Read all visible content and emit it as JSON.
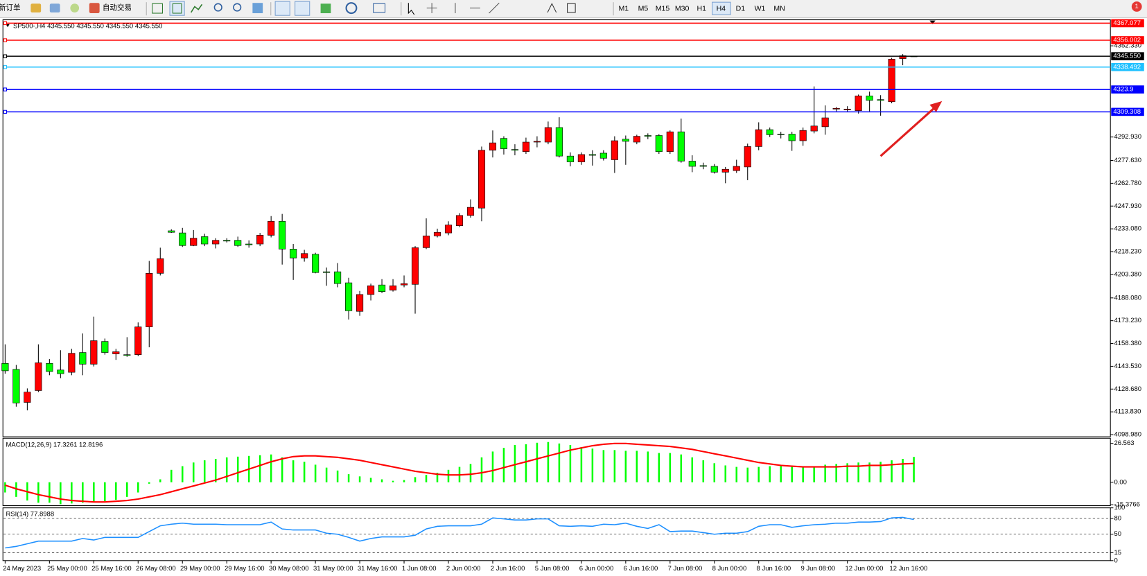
{
  "toolbar": {
    "new_order": "新订单",
    "auto_trade": "自动交易",
    "periods": [
      "M1",
      "M5",
      "M15",
      "M30",
      "H1",
      "H4",
      "D1",
      "W1",
      "MN"
    ],
    "notifications": 1
  },
  "chart_data": [
    {
      "type": "candlestick",
      "title": "SP500-,H4  4345.550 4345.550 4345.550 4345.550",
      "up_color": "#ff0000",
      "down_color": "#00ff00",
      "categories": [
        "24 May 2023",
        null,
        null,
        null,
        "25 May 00:00",
        null,
        null,
        null,
        "25 May 16:00",
        null,
        null,
        null,
        "26 May 08:00",
        null,
        null,
        null,
        "29 May 00:00",
        null,
        null,
        null,
        "29 May 16:00",
        null,
        null,
        null,
        "30 May 08:00",
        null,
        null,
        null,
        "31 May 00:00",
        null,
        null,
        null,
        "31 May 16:00",
        null,
        null,
        null,
        "1 Jun 08:00",
        null,
        null,
        null,
        "2 Jun 00:00",
        null,
        null,
        null,
        "2 Jun 16:00",
        null,
        null,
        null,
        "5 Jun 08:00",
        null,
        null,
        null,
        "6 Jun 00:00",
        null,
        null,
        null,
        "6 Jun 16:00",
        null,
        null,
        null,
        "7 Jun 08:00",
        null,
        null,
        null,
        "8 Jun 00:00",
        null,
        null,
        null,
        "8 Jun 16:00",
        null,
        null,
        null,
        "9 Jun 08:00",
        null,
        null,
        null,
        "12 Jun 00:00",
        null,
        null,
        null,
        "12 Jun 16:00",
        null,
        null
      ],
      "open": [
        4145.4,
        4141.5,
        4120.0,
        4127.7,
        4145.4,
        4141.1,
        4139.6,
        4152.5,
        4144.9,
        4159.7,
        4151.6,
        4151.1,
        4151.1,
        4169.2,
        4204.1,
        4231.8,
        4230.4,
        4222.2,
        4228.0,
        4223.2,
        4225.6,
        4225.6,
        4223.2,
        4223.2,
        4228.9,
        4238.0,
        4219.9,
        4214.1,
        4216.5,
        4205.1,
        4205.1,
        4197.9,
        4179.3,
        4190.3,
        4196.5,
        4193.1,
        4196.5,
        4196.9,
        4220.8,
        4228.5,
        4230.4,
        4235.1,
        4241.8,
        4246.6,
        4284.3,
        4292.0,
        4284.8,
        4283.4,
        4289.6,
        4289.6,
        4299.1,
        4280.5,
        4276.7,
        4281.5,
        4282.4,
        4278.1,
        4291.5,
        4289.6,
        4293.9,
        4293.9,
        4283.4,
        4296.3,
        4277.2,
        4274.3,
        4273.8,
        4270.0,
        4271.0,
        4273.4,
        4286.7,
        4297.7,
        4294.8,
        4294.8,
        4290.5,
        4296.8,
        4299.6,
        4311.1,
        4310.6,
        4310.1,
        4319.7,
        4317.3,
        4315.9,
        4344.0,
        4345.55
      ],
      "high": [
        4157.8,
        4144.4,
        4129.1,
        4157.8,
        4148.2,
        4154.0,
        4154.9,
        4164.9,
        4175.9,
        4161.6,
        4154.9,
        4162.5,
        4172.1,
        4212.2,
        4220.8,
        4232.8,
        4233.7,
        4232.3,
        4229.9,
        4227.0,
        4227.0,
        4228.0,
        4225.6,
        4230.4,
        4241.4,
        4242.8,
        4223.2,
        4219.4,
        4217.5,
        4207.9,
        4210.8,
        4201.2,
        4192.6,
        4197.4,
        4200.3,
        4200.3,
        4202.7,
        4221.8,
        4239.9,
        4233.2,
        4238.0,
        4243.3,
        4252.3,
        4286.7,
        4297.2,
        4293.4,
        4288.2,
        4292.5,
        4293.4,
        4303.0,
        4305.8,
        4282.9,
        4282.9,
        4284.3,
        4284.3,
        4293.4,
        4293.9,
        4294.4,
        4295.3,
        4294.8,
        4297.2,
        4304.9,
        4281.0,
        4276.2,
        4275.3,
        4273.4,
        4278.1,
        4288.6,
        4302.5,
        4299.1,
        4296.3,
        4296.3,
        4299.1,
        4325.9,
        4313.5,
        4312.5,
        4313.0,
        4320.6,
        4322.5,
        4320.2,
        4344.5,
        4346.9,
        4345.55
      ],
      "low": [
        4138.7,
        4117.2,
        4114.8,
        4126.7,
        4137.7,
        4135.8,
        4137.7,
        4137.7,
        4143.4,
        4151.1,
        4147.7,
        4149.7,
        4150.1,
        4155.9,
        4202.7,
        4230.4,
        4221.3,
        4221.8,
        4221.8,
        4220.3,
        4224.2,
        4221.3,
        4220.8,
        4221.8,
        4227.5,
        4209.8,
        4199.8,
        4211.7,
        4204.1,
        4196.0,
        4195.0,
        4174.0,
        4176.4,
        4186.4,
        4191.2,
        4192.2,
        4195.0,
        4177.8,
        4219.9,
        4227.5,
        4228.9,
        4234.2,
        4240.4,
        4238.0,
        4279.6,
        4281.5,
        4281.0,
        4281.9,
        4286.2,
        4288.2,
        4279.6,
        4273.8,
        4274.8,
        4274.3,
        4277.6,
        4269.5,
        4274.8,
        4288.2,
        4291.5,
        4281.9,
        4281.9,
        4276.2,
        4270.0,
        4271.9,
        4269.1,
        4262.8,
        4269.5,
        4264.8,
        4284.3,
        4292.9,
        4292.0,
        4283.9,
        4287.2,
        4295.3,
        4294.4,
        4309.6,
        4309.2,
        4308.2,
        4309.6,
        4306.8,
        4314.9,
        4339.7,
        4345.55
      ],
      "close": [
        4140.6,
        4119.6,
        4126.7,
        4145.8,
        4140.1,
        4138.7,
        4152.0,
        4144.9,
        4160.2,
        4152.5,
        4153.0,
        4150.6,
        4169.2,
        4204.1,
        4213.7,
        4230.8,
        4222.2,
        4227.0,
        4223.2,
        4225.6,
        4225.1,
        4222.2,
        4222.7,
        4228.9,
        4238.0,
        4219.9,
        4214.1,
        4217.0,
        4204.6,
        4204.6,
        4197.4,
        4179.7,
        4190.3,
        4196.0,
        4192.2,
        4196.0,
        4197.4,
        4220.8,
        4228.5,
        4230.8,
        4235.6,
        4241.8,
        4247.1,
        4284.3,
        4289.1,
        4285.3,
        4284.3,
        4289.6,
        4290.1,
        4299.1,
        4280.5,
        4276.7,
        4281.5,
        4281.0,
        4279.1,
        4290.5,
        4290.1,
        4293.4,
        4293.4,
        4283.4,
        4296.3,
        4277.2,
        4273.8,
        4273.8,
        4270.0,
        4271.9,
        4273.8,
        4286.7,
        4297.7,
        4294.4,
        4294.4,
        4290.5,
        4297.2,
        4300.1,
        4305.4,
        4311.6,
        4311.1,
        4319.7,
        4316.8,
        4316.8,
        4343.6,
        4345.9,
        4345.55
      ],
      "ylim": [
        4097.6,
        4369.3
      ],
      "yticks": [
        {
          "value": 4352.33,
          "label": "4352.330"
        },
        {
          "value": 4292.93,
          "label": "4292.930"
        },
        {
          "value": 4277.63,
          "label": "4277.630"
        },
        {
          "value": 4262.78,
          "label": "4262.780"
        },
        {
          "value": 4247.93,
          "label": "4247.930"
        },
        {
          "value": 4233.08,
          "label": "4233.080"
        },
        {
          "value": 4218.23,
          "label": "4218.230"
        },
        {
          "value": 4203.38,
          "label": "4203.380"
        },
        {
          "value": 4188.08,
          "label": "4188.080"
        },
        {
          "value": 4173.23,
          "label": "4173.230"
        },
        {
          "value": 4158.38,
          "label": "4158.380"
        },
        {
          "value": 4143.53,
          "label": "4143.530"
        },
        {
          "value": 4128.68,
          "label": "4128.680"
        },
        {
          "value": 4113.83,
          "label": "4113.830"
        },
        {
          "value": 4098.98,
          "label": "4098.980"
        }
      ],
      "grid": false,
      "levels": [
        {
          "price": 4367.077,
          "color": "#ff0000"
        },
        {
          "price": 4356.002,
          "color": "#ff0000"
        },
        {
          "price": 4345.55,
          "label": "4345.550",
          "color": "#000000"
        },
        {
          "price": 4338.492,
          "color": "#1ec0ff"
        },
        {
          "price": 4323.9,
          "color": "#0000ff"
        },
        {
          "price": 4309.308,
          "color": "#0000ff"
        }
      ]
    },
    {
      "type": "macd",
      "title": "MACD(12,26,9) 17.3261 12.8196",
      "series": [
        {
          "color": "#00ff00",
          "values": [
            -7.0,
            -10.0,
            -12.5,
            -14.0,
            -14.0,
            -15.0,
            -14.5,
            -14.0,
            -13.5,
            -13.0,
            -12.0,
            -10.0,
            -7.0,
            -1.0,
            2.0,
            8.5,
            11.0,
            13.5,
            15.0,
            16.0,
            17.0,
            17.5,
            18.0,
            18.5,
            19.0,
            17.0,
            15.0,
            14.0,
            12.0,
            10.0,
            8.0,
            5.5,
            4.0,
            3.0,
            2.0,
            1.0,
            1.5,
            3.5,
            5.0,
            6.5,
            8.5,
            10.5,
            12.5,
            17.0,
            21.0,
            23.5,
            25.5,
            26.0,
            27.0,
            27.5,
            26.5,
            25.5,
            24.0,
            23.0,
            22.0,
            22.0,
            21.5,
            21.5,
            21.0,
            20.0,
            20.0,
            19.0,
            17.0,
            15.0,
            13.0,
            11.5,
            10.5,
            10.0,
            10.5,
            11.0,
            11.0,
            10.5,
            11.0,
            11.0,
            12.0,
            12.5,
            13.0,
            13.5,
            13.5,
            14.0,
            15.0,
            16.0,
            17.3261
          ]
        },
        {
          "color": "#ff0000",
          "values": [
            -2.0,
            -4.5,
            -6.5,
            -8.5,
            -10.0,
            -11.5,
            -12.5,
            -13.0,
            -13.5,
            -13.5,
            -13.0,
            -12.5,
            -11.5,
            -10.0,
            -8.5,
            -6.5,
            -4.5,
            -2.5,
            -0.5,
            1.5,
            4.0,
            6.5,
            9.0,
            11.5,
            14.0,
            16.0,
            17.5,
            18.0,
            18.0,
            17.5,
            17.0,
            16.0,
            15.0,
            13.5,
            12.0,
            10.5,
            9.0,
            7.5,
            6.5,
            5.5,
            5.0,
            5.0,
            5.5,
            6.5,
            8.0,
            10.0,
            12.0,
            14.0,
            16.0,
            18.0,
            20.0,
            22.0,
            23.5,
            25.0,
            26.0,
            26.5,
            26.5,
            26.0,
            25.5,
            25.0,
            24.5,
            23.5,
            22.5,
            21.0,
            19.5,
            18.0,
            16.5,
            15.0,
            13.5,
            12.5,
            11.5,
            11.0,
            10.5,
            10.5,
            10.5,
            10.5,
            11.0,
            11.0,
            11.5,
            11.5,
            12.0,
            12.5,
            12.8196
          ]
        }
      ],
      "ylim": [
        -16.0,
        30.1
      ],
      "yticks": [
        26.563,
        {
          "value": 0,
          "label": "0.00"
        },
        -15.3766
      ],
      "grid": false
    },
    {
      "type": "line",
      "title": "RSI(14) 77.8988",
      "color": "#1e90ff",
      "values": [
        24,
        27,
        32,
        37,
        37,
        37,
        37,
        42,
        39,
        44,
        44,
        44,
        44,
        55,
        66,
        69,
        71,
        69,
        69,
        69,
        68,
        68,
        68,
        68,
        73,
        60,
        58,
        58,
        58,
        52,
        50,
        44,
        37,
        42,
        45,
        45,
        45,
        48,
        60,
        65,
        66,
        66,
        66,
        69,
        81,
        79,
        77,
        77,
        79,
        79,
        66,
        65,
        66,
        65,
        69,
        68,
        71,
        65,
        61,
        68,
        55,
        56,
        56,
        53,
        50,
        52,
        52,
        55,
        65,
        68,
        68,
        63,
        66,
        68,
        69,
        71,
        71,
        73,
        73,
        74,
        81,
        82,
        77.8988
      ],
      "ylim": [
        0,
        100
      ],
      "yticks": [
        100,
        80,
        50,
        15,
        0
      ],
      "grid": true
    }
  ]
}
